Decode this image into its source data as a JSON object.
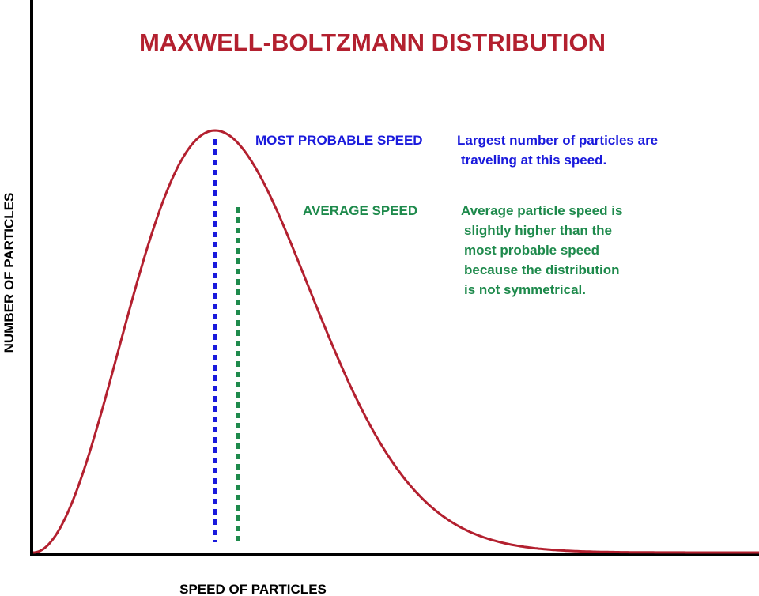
{
  "chart_data": {
    "type": "line",
    "title": "MAXWELL-BOLTZMANN DISTRIBUTION",
    "xlabel": "SPEED OF PARTICLES",
    "ylabel": "NUMBER OF PARTICLES",
    "grid": false,
    "legend": "none",
    "curve_color": "#b3202f",
    "title_color": "#b3202f",
    "series": [
      {
        "x": [
          0,
          0.25,
          0.5,
          0.75,
          1.0,
          1.25,
          1.5,
          1.75,
          2.0,
          2.25,
          2.5,
          2.75,
          3.0,
          3.25,
          3.5,
          3.75,
          4.0
        ],
        "y": [
          0,
          0.19,
          0.53,
          0.85,
          1.0,
          0.95,
          0.78,
          0.56,
          0.37,
          0.22,
          0.12,
          0.06,
          0.027,
          0.011,
          0.0044,
          0.0016,
          0.0005
        ]
      }
    ],
    "markers": [
      {
        "label": "MOST PROBABLE SPEED",
        "x": 1.0,
        "color": "#1a1adc",
        "note": [
          "Largest number of particles are",
          "traveling at this speed."
        ]
      },
      {
        "label": "AVERAGE SPEED",
        "x": 1.128,
        "color": "#1e8a4c",
        "note": [
          "Average particle speed is",
          "slightly higher than the",
          "most probable speed",
          "because the distribution",
          "is not symmetrical."
        ]
      }
    ]
  }
}
